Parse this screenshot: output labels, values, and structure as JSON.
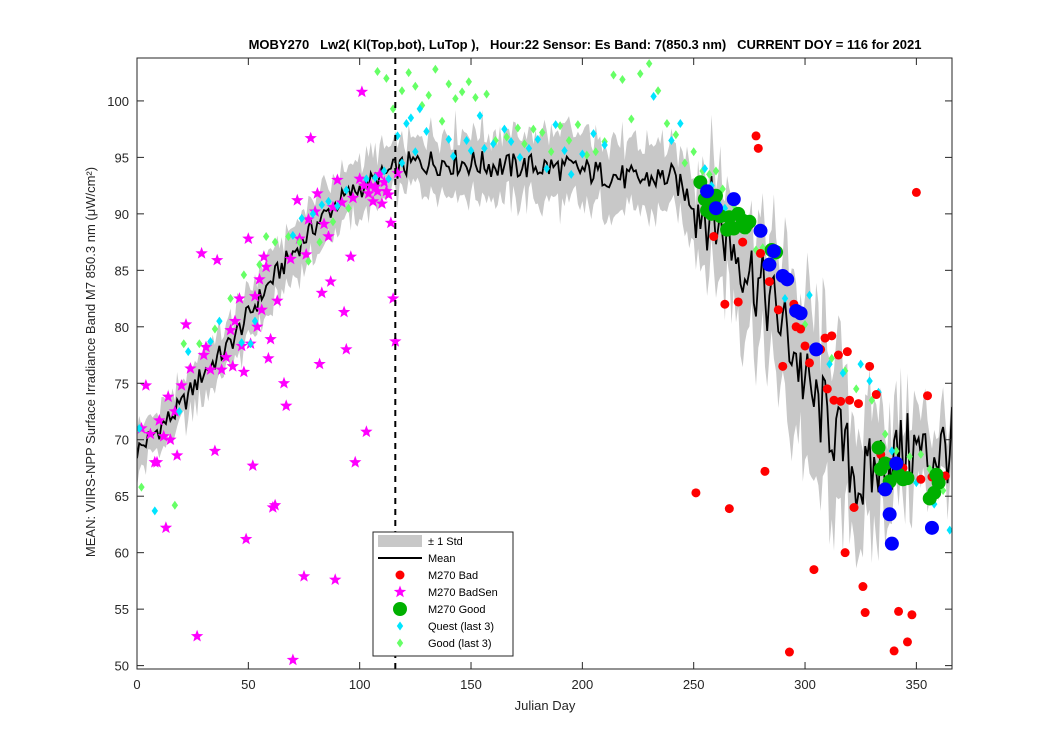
{
  "chart_data": {
    "type": "scatter",
    "title": "MOBY270   Lw2( Kl(Top,bot), LuTop ),   Hour:22 Sensor: Es Band: 7(850.3 nm)   CURRENT DOY = 116 for 2021",
    "xlabel": "Julian Day",
    "ylabel": "MEAN: VIIRS-NPP Surface Irradiance Band M7 850.3 nm (μW/cm²)",
    "xlim": [
      0,
      366
    ],
    "ylim": [
      49.7,
      103.8
    ],
    "xticks": [
      0,
      50,
      100,
      150,
      200,
      250,
      300,
      350
    ],
    "yticks": [
      50,
      55,
      60,
      65,
      70,
      75,
      80,
      85,
      90,
      95,
      100
    ],
    "grid": false,
    "legend_position": "bottom-center",
    "current_doy_line": 116,
    "legend": [
      {
        "label": "± 1 Std",
        "symbol": "band",
        "color": "#c8c8c8"
      },
      {
        "label": "Mean",
        "symbol": "line",
        "color": "#000000"
      },
      {
        "label": "M270 Bad",
        "symbol": "circle",
        "color": "#ff0000"
      },
      {
        "label": "M270 BadSen",
        "symbol": "star",
        "color": "#ff00ff"
      },
      {
        "label": "M270 Good",
        "symbol": "big-circle",
        "color": "#00b000"
      },
      {
        "label": "Quest (last 3)",
        "symbol": "diamond",
        "color": "#00e5ff"
      },
      {
        "label": "Good (last 3)",
        "symbol": "diamond",
        "color": "#66ff66"
      }
    ],
    "mean_curve": {
      "x": [
        0,
        10,
        20,
        30,
        40,
        50,
        60,
        70,
        80,
        90,
        100,
        110,
        116,
        125,
        135,
        150,
        165,
        180,
        195,
        210,
        225,
        240,
        250,
        258,
        265,
        272,
        280,
        288,
        295,
        300,
        305,
        310,
        315,
        320,
        325,
        330,
        335,
        340,
        345,
        350,
        355,
        360,
        366
      ],
      "y": [
        69,
        71,
        73,
        76,
        78,
        81,
        84,
        86.5,
        89,
        91,
        92.3,
        93.3,
        94,
        94.5,
        94.6,
        94.5,
        94.2,
        94.2,
        94,
        93.5,
        93,
        93.3,
        91,
        90,
        88,
        86,
        83.5,
        81,
        78,
        75,
        73,
        72,
        70,
        68,
        66,
        67,
        68,
        68.5,
        69,
        69,
        68.5,
        69,
        69.5
      ]
    },
    "std_band": {
      "x": [
        0,
        20,
        40,
        60,
        80,
        100,
        116,
        130,
        150,
        180,
        210,
        240,
        255,
        270,
        285,
        300,
        315,
        330,
        345,
        366
      ],
      "halfwidth": [
        2,
        2,
        2.3,
        2.5,
        2.5,
        2.3,
        2.2,
        2.5,
        3,
        3,
        3,
        3,
        4,
        5,
        6,
        7,
        7,
        5,
        3.5,
        3
      ]
    },
    "series": [
      {
        "name": "M270 Bad",
        "marker": "circle",
        "color": "#ff0000",
        "x": [
          251,
          259,
          264,
          266,
          269,
          270,
          272,
          275,
          278,
          279,
          280,
          282,
          284,
          288,
          290,
          293,
          295,
          296,
          298,
          300,
          302,
          304,
          305,
          307,
          309,
          310,
          312,
          313,
          315,
          316,
          318,
          319,
          320,
          322,
          324,
          326,
          327,
          329,
          332,
          334,
          338,
          340,
          342,
          344,
          346,
          348,
          350,
          352,
          355,
          357,
          360,
          363
        ],
        "y": [
          65.3,
          88,
          82,
          63.9,
          90,
          82.2,
          87.5,
          89,
          96.9,
          95.8,
          86.5,
          67.2,
          84,
          81.5,
          76.5,
          51.2,
          82,
          80,
          79.8,
          78.3,
          76.8,
          58.5,
          78.1,
          78,
          79,
          74.5,
          79.2,
          73.5,
          77.5,
          73.4,
          60,
          77.8,
          73.5,
          64,
          73.2,
          57,
          54.7,
          76.5,
          74,
          68.7,
          68,
          51.3,
          54.8,
          67.5,
          52.1,
          54.5,
          91.9,
          66.5,
          73.9,
          66.7,
          66.3,
          66.8
        ]
      },
      {
        "name": "M270 BadSen",
        "marker": "star",
        "color": "#ff00ff",
        "x": [
          2,
          4,
          6,
          8,
          9,
          10,
          12,
          13,
          14,
          15,
          17,
          18,
          20,
          22,
          24,
          27,
          29,
          30,
          31,
          33,
          35,
          36,
          38,
          40,
          42,
          43,
          44,
          46,
          47,
          48,
          49,
          50,
          51,
          52,
          53,
          54,
          55,
          56,
          57,
          58,
          59,
          60,
          61,
          62,
          63,
          66,
          67,
          69,
          70,
          72,
          73,
          75,
          76,
          77,
          78,
          80,
          81,
          82,
          83,
          84,
          86,
          87,
          88,
          89,
          90,
          92,
          93,
          94,
          96,
          97,
          98,
          100,
          101,
          102,
          103,
          104,
          105,
          106,
          107,
          108,
          109,
          110,
          111,
          112,
          113,
          114,
          115,
          116,
          117
        ],
        "y": [
          71,
          74.8,
          70.5,
          68,
          68,
          71.7,
          70.3,
          62.2,
          73.8,
          70,
          72.5,
          68.6,
          74.8,
          80.2,
          76.3,
          52.6,
          86.5,
          77.5,
          78.2,
          76.2,
          69,
          85.9,
          76.2,
          77.3,
          79.7,
          76.5,
          80.5,
          82.5,
          78.3,
          76,
          61.2,
          87.8,
          78.5,
          67.7,
          82.7,
          80,
          84.2,
          81.5,
          86.2,
          85.3,
          77.2,
          78.9,
          64,
          64.2,
          82.3,
          75,
          73,
          86,
          50.5,
          91.2,
          87.8,
          57.9,
          86.4,
          89.5,
          96.7,
          90.2,
          91.8,
          76.7,
          83,
          89.1,
          88,
          84,
          90.6,
          57.6,
          93,
          91,
          81.3,
          78,
          86.2,
          91.4,
          68,
          93.1,
          100.8,
          92.5,
          70.7,
          91.8,
          92.5,
          91.1,
          92.4,
          92,
          93.5,
          90.9,
          92.8,
          92,
          91.7,
          89.2,
          82.5,
          78.7,
          93.6
        ]
      },
      {
        "name": "M270 Good",
        "marker": "big-circle",
        "color": "#00b000",
        "x": [
          253,
          255,
          256,
          258,
          259,
          260,
          262,
          265,
          266,
          268,
          270,
          272,
          273,
          275,
          285,
          287,
          333,
          334,
          336,
          338,
          342,
          344,
          346,
          356,
          358,
          359,
          360
        ],
        "y": [
          92.8,
          91.3,
          90.3,
          90.0,
          91.3,
          91.6,
          89.8,
          88.6,
          89.7,
          88.7,
          90.0,
          89.4,
          88.8,
          89.3,
          86.8,
          86.6,
          69.3,
          67.4,
          67.9,
          66.3,
          66.9,
          66.5,
          66.6,
          64.8,
          65.3,
          66.9,
          66.2
        ]
      },
      {
        "name": "M270 Good (blue)",
        "marker": "big-circle",
        "color": "#0000ff",
        "x": [
          256,
          260,
          268,
          280,
          284,
          286,
          290,
          292,
          296,
          298,
          305,
          336,
          338,
          339,
          341,
          357
        ],
        "y": [
          92.0,
          90.5,
          91.3,
          88.5,
          85.5,
          86.7,
          84.5,
          84.2,
          81.4,
          81.2,
          78.0,
          65.6,
          63.4,
          60.8,
          67.9,
          62.2
        ]
      },
      {
        "name": "Quest (last 3)",
        "marker": "diamond",
        "color": "#00e5ff",
        "x": [
          1,
          8,
          19,
          23,
          33,
          37,
          47,
          51,
          53,
          70,
          74,
          79,
          83,
          86,
          90,
          94,
          103,
          107,
          111,
          113,
          117,
          119,
          121,
          123,
          125,
          127,
          130,
          140,
          142,
          148,
          150,
          154,
          156,
          160,
          165,
          168,
          172,
          176,
          180,
          184,
          188,
          192,
          195,
          200,
          205,
          210,
          232,
          240,
          244,
          255,
          258,
          261,
          264,
          270,
          275,
          283,
          291,
          295,
          302,
          311,
          317,
          325,
          329,
          333,
          339,
          345,
          350,
          358,
          365
        ],
        "y": [
          71,
          63.7,
          72.5,
          77.8,
          78.7,
          80.5,
          78.6,
          78.5,
          80.5,
          88.1,
          89.6,
          90,
          90.8,
          91.1,
          90.7,
          92.1,
          93.1,
          93.2,
          93.8,
          93.1,
          96.9,
          94.5,
          98,
          98.5,
          95.5,
          99.3,
          97.3,
          96.6,
          95.1,
          96.5,
          95.6,
          98.7,
          95.8,
          96.2,
          97.5,
          96.4,
          95,
          95.8,
          96.6,
          94,
          97.9,
          95.6,
          93.5,
          95.3,
          97.1,
          96.1,
          100.4,
          96.5,
          98,
          94,
          92.5,
          91,
          90.5,
          89,
          89.2,
          85.5,
          82.5,
          81.5,
          82.8,
          76.7,
          75.9,
          76.7,
          75.2,
          74.2,
          69,
          67,
          66.2,
          64.3,
          62
        ]
      },
      {
        "name": "Good (last 3)",
        "marker": "diamond",
        "color": "#66ff66",
        "x": [
          2,
          17,
          21,
          28,
          35,
          42,
          48,
          55,
          58,
          62,
          68,
          73,
          77,
          82,
          88,
          95,
          108,
          112,
          115,
          119,
          122,
          125,
          128,
          131,
          134,
          137,
          140,
          143,
          146,
          149,
          152,
          157,
          161,
          166,
          171,
          174,
          178,
          182,
          186,
          190,
          194,
          198,
          202,
          206,
          210,
          214,
          218,
          222,
          226,
          230,
          234,
          238,
          242,
          246,
          250,
          254,
          257,
          260,
          263,
          268,
          274,
          278,
          281,
          286,
          289,
          300,
          306,
          312,
          318,
          323,
          330,
          336,
          341,
          347,
          352,
          356,
          362
        ],
        "y": [
          65.8,
          64.2,
          78.5,
          78.5,
          79.8,
          82.5,
          84.6,
          85.5,
          88,
          87.5,
          88,
          87.5,
          85.8,
          87.5,
          89.3,
          90.5,
          102.6,
          102,
          99.3,
          100.9,
          102.5,
          101.3,
          99.6,
          100.5,
          102.8,
          98.2,
          101.5,
          100.2,
          100.8,
          101.7,
          100.3,
          100.6,
          96.5,
          96.8,
          97.6,
          96.2,
          97.5,
          97.2,
          95.5,
          97.8,
          96.5,
          97.9,
          95.2,
          95.5,
          96.4,
          102.3,
          101.9,
          98.4,
          102.4,
          103.3,
          100.9,
          98,
          97,
          94.5,
          95.5,
          93.8,
          93.5,
          93.8,
          92.2,
          90.8,
          88.5,
          86.8,
          87,
          86,
          84.5,
          80.2,
          78,
          77.2,
          76.1,
          74.5,
          73.5,
          70.5,
          69,
          68.5,
          68.7,
          67.4,
          65.5
        ]
      }
    ]
  }
}
